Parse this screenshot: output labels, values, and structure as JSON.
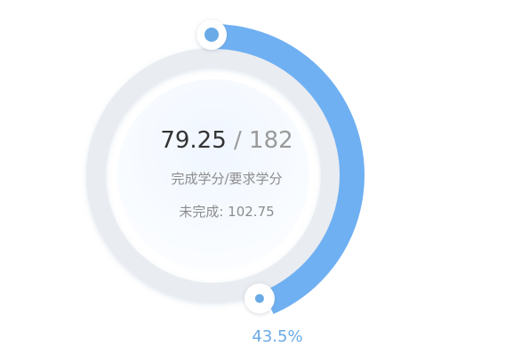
{
  "gauge": {
    "completed": "79.25",
    "separator": "/",
    "required": "182",
    "caption": "完成学分/要求学分",
    "remaining_label": "未完成: ",
    "remaining_value": "102.75",
    "remaining_text": "未完成: 102.75",
    "percent_label": "43.5%",
    "progress_fraction": 0.435
  },
  "colors": {
    "accent": "#6fb0f2",
    "track": "#e9ecf1",
    "inner_fill": "#f2f7fe",
    "text_primary": "#333333",
    "text_secondary": "#8c8c8c",
    "percent_text": "#6aaae6"
  }
}
